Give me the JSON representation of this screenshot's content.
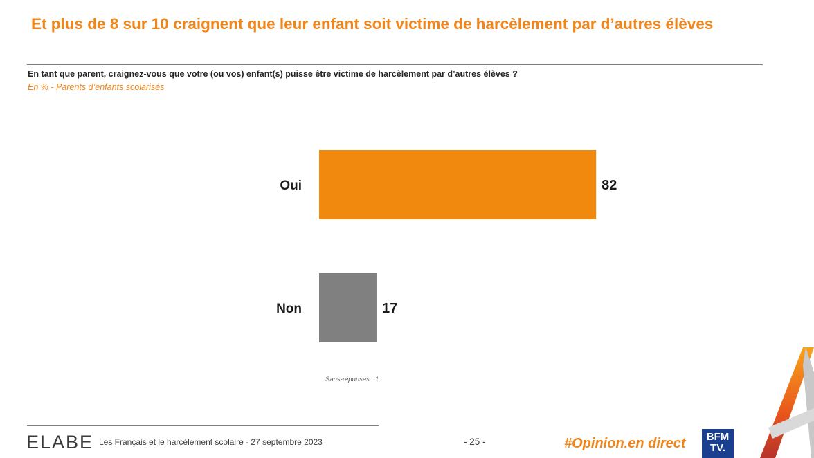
{
  "header": {
    "title": "Et plus de 8 sur 10 craignent que leur enfant soit victime de harcèlement par d’autres élèves",
    "question": "En tant que parent, craignez-vous que votre (ou vos) enfant(s) puisse être victime de harcèlement par d’autres élèves ?",
    "base": "En % - Parents d’enfants scolarisés"
  },
  "chart_data": {
    "type": "bar",
    "orientation": "horizontal",
    "categories": [
      "Oui",
      "Non"
    ],
    "values": [
      82,
      17
    ],
    "colors": [
      "#f0890e",
      "#808080"
    ],
    "xlim": [
      0,
      100
    ],
    "grid": false,
    "note": "Sans-réponses : 1"
  },
  "footer": {
    "logo": "ELABE",
    "text": "Les Français et le harcèlement scolaire - 27 septembre 2023",
    "page": "- 25 -",
    "hashtag": "#Opinion.en direct",
    "partner_logo": [
      "BFM",
      "TV."
    ]
  },
  "colors": {
    "accent": "#f0851a",
    "bar_primary": "#f0890e",
    "bar_secondary": "#808080",
    "partner": "#1b3f8f"
  }
}
